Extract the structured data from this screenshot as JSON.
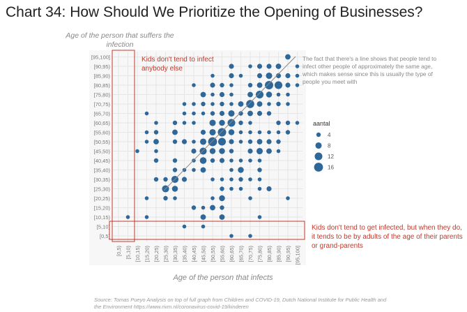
{
  "chart_data": {
    "type": "scatter",
    "title": "Chart 34: How Should We Prioritize the Opening of Businesses?",
    "xlabel": "Age of the person that infects",
    "ylabel": "Age of the person that suffers the infection",
    "categories": [
      "[0,5)",
      "[5,10)",
      "[10,15)",
      "[15,20)",
      "[20,25)",
      "[25,30)",
      "[30,35)",
      "[35,40)",
      "[40,45)",
      "[45,50)",
      "[50,55)",
      "[55,60)",
      "[60,65)",
      "[65,70)",
      "[70,75)",
      "[75,80)",
      "[80,85)",
      "[85,90)",
      "[90,95)",
      "[95,100]"
    ],
    "legend": {
      "title": "aantal",
      "values": [
        4,
        8,
        12,
        16
      ],
      "placement": "right"
    },
    "color": "#2f6798",
    "points_format": "[x_category_index, y_category_index, aantal]",
    "points": [
      [
        18,
        19,
        6
      ],
      [
        12,
        18,
        5
      ],
      [
        14,
        18,
        3
      ],
      [
        15,
        18,
        5
      ],
      [
        16,
        18,
        5
      ],
      [
        17,
        18,
        6
      ],
      [
        19,
        18,
        3
      ],
      [
        10,
        17,
        3
      ],
      [
        12,
        17,
        5
      ],
      [
        13,
        17,
        3
      ],
      [
        15,
        17,
        5
      ],
      [
        16,
        17,
        8
      ],
      [
        17,
        17,
        5
      ],
      [
        18,
        17,
        5
      ],
      [
        19,
        17,
        3
      ],
      [
        8,
        16,
        3
      ],
      [
        10,
        16,
        5
      ],
      [
        11,
        16,
        4
      ],
      [
        12,
        16,
        3
      ],
      [
        14,
        16,
        4
      ],
      [
        15,
        16,
        6
      ],
      [
        16,
        16,
        14
      ],
      [
        17,
        16,
        12
      ],
      [
        18,
        16,
        5
      ],
      [
        19,
        16,
        3
      ],
      [
        9,
        15,
        6
      ],
      [
        10,
        15,
        3
      ],
      [
        11,
        15,
        5
      ],
      [
        12,
        15,
        3
      ],
      [
        14,
        15,
        6
      ],
      [
        15,
        15,
        12
      ],
      [
        16,
        15,
        7
      ],
      [
        17,
        15,
        3
      ],
      [
        18,
        15,
        3
      ],
      [
        7,
        14,
        3
      ],
      [
        8,
        14,
        3
      ],
      [
        9,
        14,
        4
      ],
      [
        10,
        14,
        3
      ],
      [
        11,
        14,
        4
      ],
      [
        12,
        14,
        3
      ],
      [
        13,
        14,
        6
      ],
      [
        14,
        14,
        13
      ],
      [
        15,
        14,
        6
      ],
      [
        16,
        14,
        3
      ],
      [
        17,
        14,
        4
      ],
      [
        18,
        14,
        3
      ],
      [
        3,
        13,
        3
      ],
      [
        7,
        13,
        3
      ],
      [
        8,
        13,
        3
      ],
      [
        9,
        13,
        3
      ],
      [
        10,
        13,
        4
      ],
      [
        11,
        13,
        5
      ],
      [
        12,
        13,
        8
      ],
      [
        13,
        13,
        4
      ],
      [
        14,
        13,
        6
      ],
      [
        15,
        13,
        5
      ],
      [
        16,
        13,
        4
      ],
      [
        4,
        12,
        3
      ],
      [
        6,
        12,
        4
      ],
      [
        7,
        12,
        3
      ],
      [
        8,
        12,
        3
      ],
      [
        10,
        12,
        8
      ],
      [
        11,
        12,
        7
      ],
      [
        12,
        12,
        12
      ],
      [
        13,
        12,
        4
      ],
      [
        14,
        12,
        3
      ],
      [
        17,
        12,
        4
      ],
      [
        18,
        12,
        4
      ],
      [
        19,
        12,
        3
      ],
      [
        3,
        11,
        3
      ],
      [
        4,
        11,
        4
      ],
      [
        6,
        11,
        6
      ],
      [
        9,
        11,
        5
      ],
      [
        10,
        11,
        8
      ],
      [
        11,
        11,
        14
      ],
      [
        12,
        11,
        7
      ],
      [
        13,
        11,
        3
      ],
      [
        14,
        11,
        3
      ],
      [
        15,
        11,
        3
      ],
      [
        16,
        11,
        3
      ],
      [
        17,
        11,
        3
      ],
      [
        18,
        11,
        4
      ],
      [
        3,
        10,
        3
      ],
      [
        4,
        10,
        6
      ],
      [
        6,
        10,
        4
      ],
      [
        7,
        10,
        5
      ],
      [
        8,
        10,
        3
      ],
      [
        9,
        10,
        8
      ],
      [
        10,
        10,
        16
      ],
      [
        11,
        10,
        12
      ],
      [
        12,
        10,
        5
      ],
      [
        13,
        10,
        3
      ],
      [
        14,
        10,
        4
      ],
      [
        15,
        10,
        6
      ],
      [
        16,
        10,
        5
      ],
      [
        17,
        10,
        4
      ],
      [
        2,
        9,
        3
      ],
      [
        4,
        9,
        3
      ],
      [
        8,
        9,
        5
      ],
      [
        9,
        9,
        10
      ],
      [
        10,
        9,
        7
      ],
      [
        11,
        9,
        7
      ],
      [
        12,
        9,
        4
      ],
      [
        14,
        9,
        5
      ],
      [
        15,
        9,
        8
      ],
      [
        16,
        9,
        6
      ],
      [
        17,
        9,
        3
      ],
      [
        4,
        8,
        4
      ],
      [
        6,
        8,
        4
      ],
      [
        8,
        8,
        3
      ],
      [
        9,
        8,
        9
      ],
      [
        10,
        8,
        4
      ],
      [
        11,
        8,
        5
      ],
      [
        12,
        8,
        3
      ],
      [
        13,
        8,
        3
      ],
      [
        14,
        8,
        3
      ],
      [
        15,
        8,
        3
      ],
      [
        6,
        7,
        4
      ],
      [
        7,
        7,
        3
      ],
      [
        8,
        7,
        3
      ],
      [
        9,
        7,
        6
      ],
      [
        12,
        7,
        3
      ],
      [
        13,
        7,
        7
      ],
      [
        15,
        7,
        4
      ],
      [
        4,
        6,
        4
      ],
      [
        5,
        6,
        4
      ],
      [
        6,
        6,
        10
      ],
      [
        7,
        6,
        5
      ],
      [
        10,
        6,
        3
      ],
      [
        11,
        6,
        3
      ],
      [
        12,
        6,
        3
      ],
      [
        13,
        6,
        4
      ],
      [
        14,
        6,
        3
      ],
      [
        15,
        6,
        3
      ],
      [
        5,
        5,
        10
      ],
      [
        6,
        5,
        7
      ],
      [
        11,
        5,
        4
      ],
      [
        12,
        5,
        3
      ],
      [
        13,
        5,
        3
      ],
      [
        15,
        5,
        3
      ],
      [
        16,
        5,
        5
      ],
      [
        3,
        4,
        3
      ],
      [
        5,
        4,
        4
      ],
      [
        6,
        4,
        3
      ],
      [
        10,
        4,
        3
      ],
      [
        11,
        4,
        7
      ],
      [
        14,
        4,
        3
      ],
      [
        18,
        4,
        3
      ],
      [
        8,
        3,
        4
      ],
      [
        9,
        3,
        3
      ],
      [
        10,
        3,
        6
      ],
      [
        11,
        3,
        4
      ],
      [
        1,
        2,
        3
      ],
      [
        3,
        2,
        3
      ],
      [
        9,
        2,
        6
      ],
      [
        11,
        2,
        6
      ],
      [
        15,
        2,
        3
      ],
      [
        7,
        1,
        3
      ],
      [
        9,
        1,
        3
      ],
      [
        12,
        0,
        3
      ],
      [
        14,
        0,
        3
      ]
    ],
    "grid": true
  },
  "annotations": {
    "kids_infect": "Kids don't tend to infect anybody else",
    "line_note": "The fact that there's a line shows that people tend to infect other people of approximately the same age, which makes sense since this is usually the type of people you meet with",
    "kids_infected": "Kids don't tend to get infected, but when they do, it tends to be by adults of the age of their parents or grand-parents"
  },
  "source": "Source: Tomas Pueyo Analysis on top of full graph from Children and COVID-19, Dutch National Institute for Public Health and the Environment https://www.rivm.nl/coronavirus-covid-19/kinderen"
}
